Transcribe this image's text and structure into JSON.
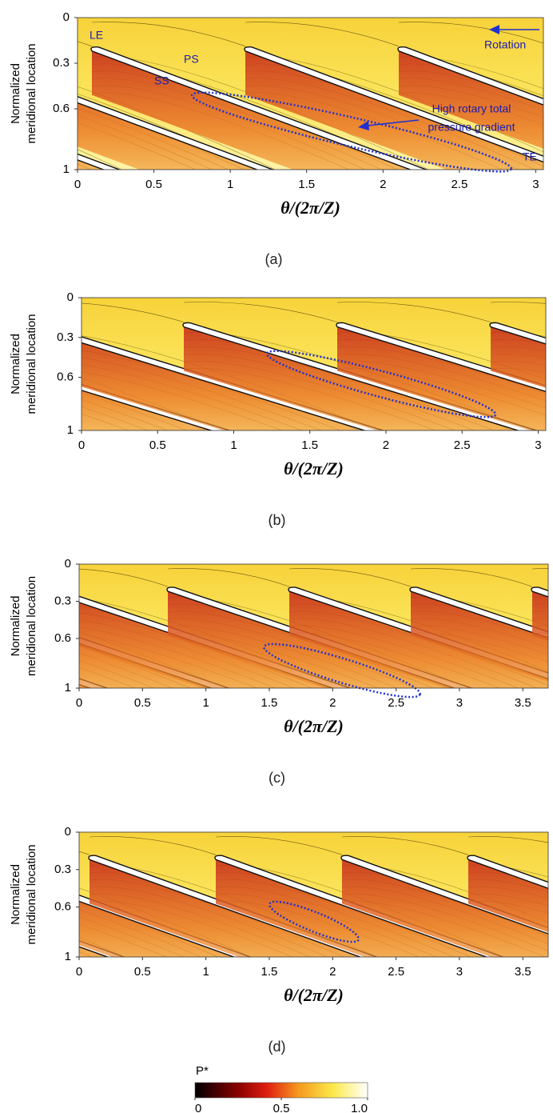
{
  "chart_data": [
    {
      "type": "contour",
      "panel_label": "(a)",
      "y_label": [
        "Normalized",
        "meridional location"
      ],
      "x_label": "θ/(2π/Z)",
      "xlim": [
        0,
        3.05
      ],
      "xticks": [
        0,
        0.5,
        1,
        1.5,
        2,
        2.5,
        3
      ],
      "ylim": [
        0,
        1
      ],
      "yticks": [
        0,
        0.3,
        0.6,
        1
      ],
      "y_inverted": true,
      "annotations": {
        "le": "LE",
        "ps": "PS",
        "ss": "SS",
        "rotation": "Rotation",
        "gradient": [
          "High rotary total",
          "pressure gradient"
        ],
        "te": "TE"
      }
    },
    {
      "type": "contour",
      "panel_label": "(b)",
      "y_label": [
        "Normalized",
        "meridional location"
      ],
      "x_label": "θ/(2π/Z)",
      "xlim": [
        0,
        3.05
      ],
      "xticks": [
        0,
        0.5,
        1,
        1.5,
        2,
        2.5,
        3
      ],
      "ylim": [
        0,
        1
      ],
      "yticks": [
        0,
        0.3,
        0.6,
        1
      ],
      "y_inverted": true
    },
    {
      "type": "contour",
      "panel_label": "(c)",
      "y_label": [
        "Normalized",
        "meridional location"
      ],
      "x_label": "θ/(2π/Z)",
      "xlim": [
        0,
        3.7
      ],
      "xticks": [
        0,
        0.5,
        1,
        1.5,
        2,
        2.5,
        3,
        3.5
      ],
      "ylim": [
        0,
        1
      ],
      "yticks": [
        0,
        0.3,
        0.6,
        1
      ],
      "y_inverted": true
    },
    {
      "type": "contour",
      "panel_label": "(d)",
      "y_label": [
        "Normalized",
        "meridional location"
      ],
      "x_label": "θ/(2π/Z)",
      "xlim": [
        0,
        3.7
      ],
      "xticks": [
        0,
        0.5,
        1,
        1.5,
        2,
        2.5,
        3,
        3.5
      ],
      "ylim": [
        0,
        1
      ],
      "yticks": [
        0,
        0.3,
        0.6,
        1
      ],
      "y_inverted": true
    }
  ],
  "colorbar": {
    "title": "P*",
    "lim": [
      0,
      1
    ],
    "ticks": [
      0,
      0.5,
      {
        "value": 1,
        "label": "1.0"
      }
    ]
  }
}
